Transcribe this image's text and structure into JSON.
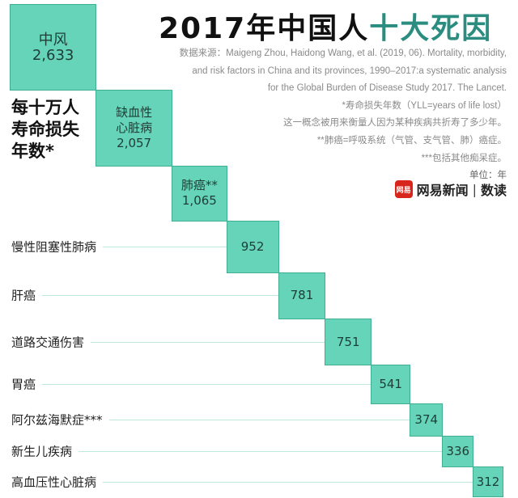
{
  "title": {
    "main": "2017年中国人",
    "highlight": "十大死因"
  },
  "notes": {
    "source": [
      "数据来源：Maigeng Zhou, Haidong Wang, et al. (2019, 06). Mortality, morbidity,",
      "and risk factors in China and its provinces, 1990–2017:a systematic analysis",
      "for the Global Burden of Disease Study 2017. The Lancet."
    ],
    "footnote1": "*寿命损失年数（YLL=years of life lost）",
    "footnote1b": "这一概念被用来衡量人因为某种疾病共折寿了多少年。",
    "footnote2": "**肺癌=呼吸系统（气管、支气管、肺）癌症。",
    "footnote3": "***包括其他痴呆症。",
    "unit": "单位：年"
  },
  "brand": {
    "logo_text": "网易",
    "name": "网易新闻",
    "section": "数读"
  },
  "colors": {
    "box": "#66d4b8",
    "border": "#3fae92",
    "title_highlight": "#2b8c80"
  },
  "chart_data": {
    "type": "square-area",
    "ylabel": "每十万人寿命损失年数*",
    "categories": [
      "中风",
      "缺血性心脏病",
      "肺癌**",
      "慢性阻塞性肺病",
      "肝癌",
      "道路交通伤害",
      "胃癌",
      "阿尔兹海默症***",
      "新生儿疾病",
      "高血压性心脏病"
    ],
    "values": [
      2633,
      2057,
      1065,
      952,
      781,
      751,
      541,
      374,
      336,
      312
    ],
    "value_labels": [
      "2,633",
      "2,057",
      "1,065",
      "952",
      "781",
      "751",
      "541",
      "374",
      "336",
      "312"
    ],
    "inside_labels": [
      "中风",
      "缺血性\n心脏病",
      "肺癌**"
    ]
  }
}
